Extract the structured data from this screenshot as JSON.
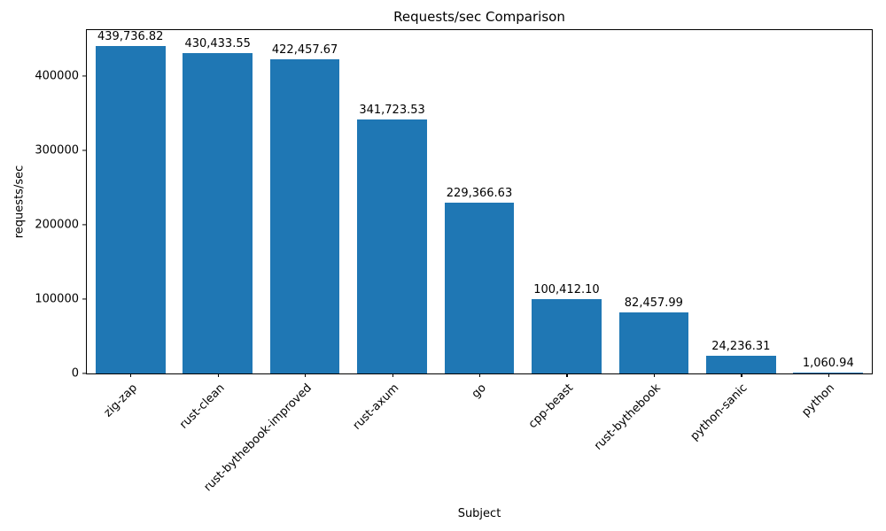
{
  "figure": {
    "title": "Requests/sec Comparison",
    "xlabel": "Subject",
    "ylabel": "requests/sec"
  },
  "chart_data": {
    "type": "bar",
    "title": "Requests/sec Comparison",
    "xlabel": "Subject",
    "ylabel": "requests/sec",
    "categories": [
      "zig-zap",
      "rust-clean",
      "rust-bythebook-improved",
      "rust-axum",
      "go",
      "cpp-beast",
      "rust-bythebook",
      "python-sanic",
      "python"
    ],
    "values": [
      439736.82,
      430433.55,
      422457.67,
      341723.53,
      229366.63,
      100412.1,
      82457.99,
      24236.31,
      1060.94
    ],
    "value_labels": [
      "439,736.82",
      "430,433.55",
      "422,457.67",
      "341,723.53",
      "229,366.63",
      "100,412.10",
      "82,457.99",
      "24,236.31",
      "1,060.94"
    ],
    "bar_color": "#1f77b4",
    "ylim": [
      0,
      461723.66
    ],
    "yticks": [
      0,
      100000,
      200000,
      300000,
      400000
    ],
    "ytick_labels": [
      "0",
      "100000",
      "200000",
      "300000",
      "400000"
    ],
    "grid": false,
    "bar_width_fraction": 0.8
  }
}
